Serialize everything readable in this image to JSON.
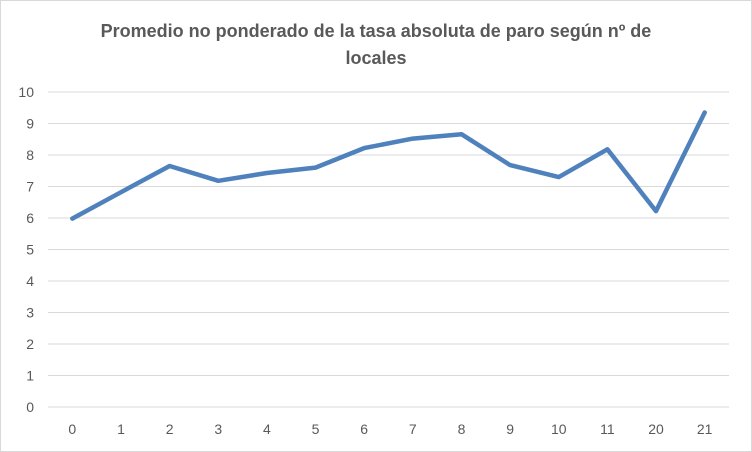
{
  "chart_data": {
    "type": "line",
    "title": "Promedio no ponderado de la tasa absoluta de paro según nº de locales",
    "xlabel": "",
    "ylabel": "",
    "categories": [
      "0",
      "1",
      "2",
      "3",
      "4",
      "5",
      "6",
      "7",
      "8",
      "9",
      "10",
      "11",
      "20",
      "21"
    ],
    "series": [
      {
        "values": [
          5.98,
          6.82,
          7.65,
          7.18,
          7.43,
          7.6,
          8.22,
          8.52,
          8.66,
          7.68,
          7.3,
          8.18,
          6.22,
          9.35
        ]
      }
    ],
    "ylim": [
      0,
      10
    ],
    "yticks": [
      "0",
      "1",
      "2",
      "3",
      "4",
      "5",
      "6",
      "7",
      "8",
      "9",
      "10"
    ],
    "grid": true,
    "legend": "none",
    "colors": {
      "line": "#4f81bd",
      "grid": "#d9d9d9",
      "text": "#595959"
    }
  }
}
